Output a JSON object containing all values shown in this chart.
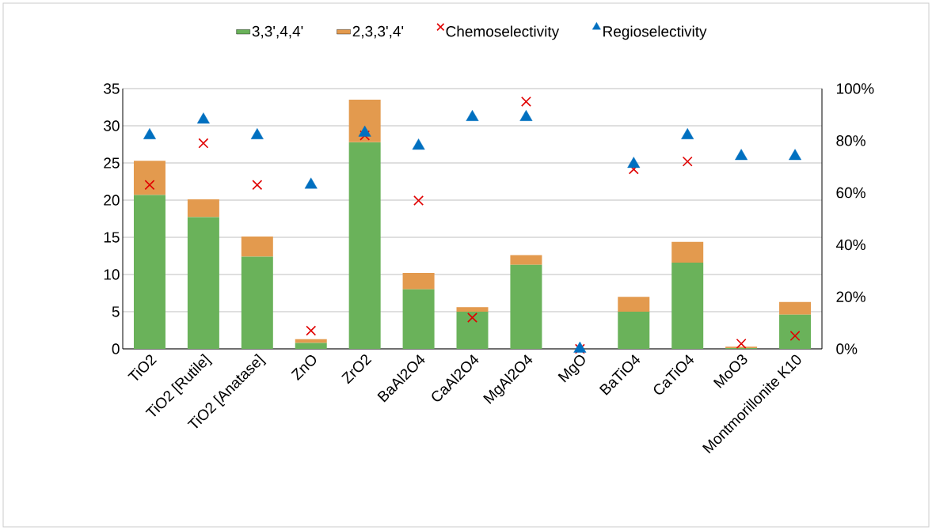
{
  "chart_data": {
    "type": "bar",
    "stacked": true,
    "grid": "y",
    "legend": "top",
    "categories": [
      "TiO2",
      "TiO2 [Rutile]",
      "TiO2 [Anatase]",
      "ZnO",
      "ZrO2",
      "BaAl2O4",
      "CaAl2O4",
      "MgAl2O4",
      "MgO",
      "BaTiO4",
      "CaTiO4",
      "MoO3",
      "Montmorillonite K10"
    ],
    "ylim": [
      0,
      35
    ],
    "yticks": [
      0,
      5,
      10,
      15,
      20,
      25,
      30,
      35
    ],
    "y2lim": [
      0,
      100
    ],
    "y2ticks": [
      {
        "value": 0,
        "label": "0%"
      },
      {
        "value": 20,
        "label": "20%"
      },
      {
        "value": 40,
        "label": "40%"
      },
      {
        "value": 60,
        "label": "60%"
      },
      {
        "value": 80,
        "label": "80%"
      },
      {
        "value": 100,
        "label": "100%"
      }
    ],
    "series": [
      {
        "name": "3,3',4,4'",
        "type": "bar",
        "color": "#6ab25a",
        "values": [
          20.7,
          17.7,
          12.4,
          0.8,
          27.8,
          8.0,
          5.0,
          11.3,
          0,
          5.0,
          11.6,
          0.1,
          4.6
        ]
      },
      {
        "name": "2,3,3',4'",
        "type": "bar",
        "color": "#e39a4e",
        "values": [
          4.6,
          2.4,
          2.7,
          0.5,
          5.7,
          2.2,
          0.6,
          1.3,
          0,
          2.0,
          2.8,
          0.2,
          1.7
        ]
      },
      {
        "name": "Chemoselectivity",
        "type": "scatter",
        "axis": "y2",
        "marker": "cross",
        "color": "#e00000",
        "values": [
          63,
          79,
          63,
          7,
          82,
          57,
          12,
          95,
          0,
          69,
          72,
          2,
          5
        ]
      },
      {
        "name": "Regioselectivity",
        "type": "scatter",
        "axis": "y2",
        "marker": "triangle",
        "color": "#0070c0",
        "values": [
          82,
          88,
          82,
          63,
          83,
          78,
          89,
          89,
          0,
          71,
          82,
          74,
          74
        ]
      }
    ]
  }
}
